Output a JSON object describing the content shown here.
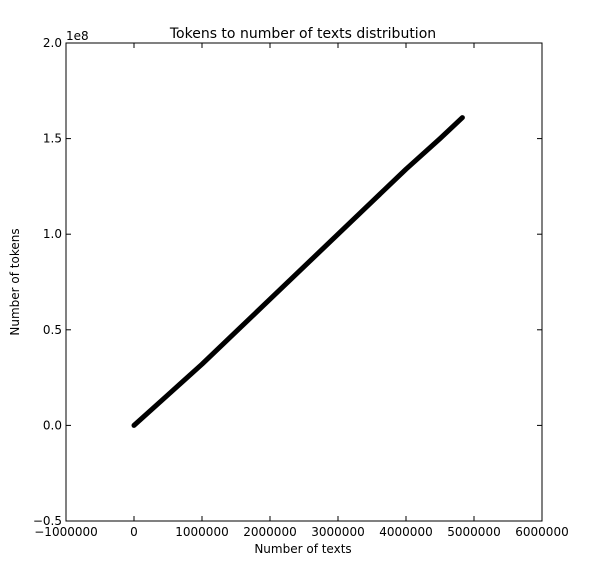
{
  "chart_data": {
    "type": "line",
    "title": "Tokens to number of texts distribution",
    "xlabel": "Number of texts",
    "ylabel": "Number of tokens",
    "y_offset_label": "1e8",
    "xlim": [
      -1000000,
      6000000
    ],
    "ylim": [
      -0.5,
      2.0
    ],
    "y_scale_factor": 100000000,
    "grid": false,
    "legend": "none",
    "xticks": [
      -1000000,
      0,
      1000000,
      2000000,
      3000000,
      4000000,
      5000000,
      6000000
    ],
    "xtick_labels": [
      "−1000000",
      "0",
      "1000000",
      "2000000",
      "3000000",
      "4000000",
      "5000000",
      "6000000"
    ],
    "yticks": [
      -0.5,
      0.0,
      0.5,
      1.0,
      1.5,
      2.0
    ],
    "ytick_labels": [
      "−0.5",
      "0.0",
      "0.5",
      "1.0",
      "1.5",
      "2.0"
    ],
    "series": [
      {
        "color": "#000000",
        "x": [
          0,
          500000,
          1000000,
          1500000,
          2000000,
          2500000,
          3000000,
          3500000,
          4000000,
          4500000,
          4830000
        ],
        "y": [
          0.0,
          0.16,
          0.32,
          0.49,
          0.66,
          0.83,
          1.0,
          1.17,
          1.34,
          1.5,
          1.61
        ]
      }
    ]
  }
}
